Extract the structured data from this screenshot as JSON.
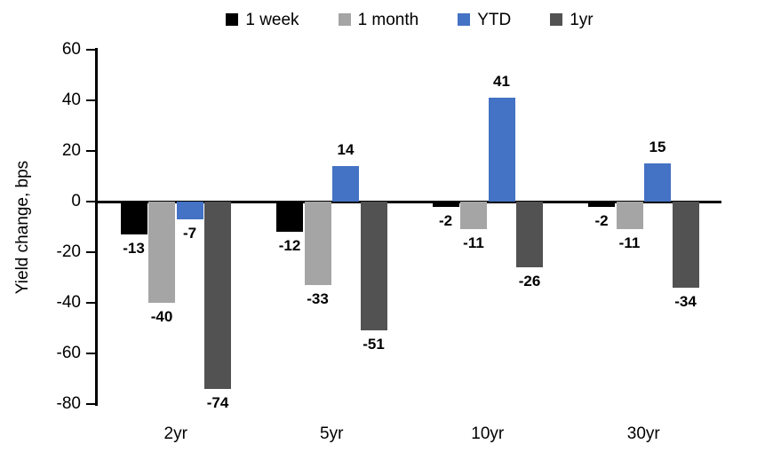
{
  "chart_data": {
    "type": "bar",
    "title": "",
    "xlabel": "",
    "ylabel": "Yield change, bps",
    "categories": [
      "2yr",
      "5yr",
      "10yr",
      "30yr"
    ],
    "series": [
      {
        "name": "1 week",
        "color": "#000000",
        "values": [
          -13,
          -12,
          -2,
          -2
        ]
      },
      {
        "name": "1 month",
        "color": "#A5A5A5",
        "values": [
          -40,
          -33,
          -11,
          -11
        ]
      },
      {
        "name": "YTD",
        "color": "#4472C4",
        "values": [
          -7,
          14,
          41,
          15
        ]
      },
      {
        "name": "1yr",
        "color": "#525252",
        "values": [
          -74,
          -51,
          -26,
          -34
        ]
      }
    ],
    "ylim": [
      -80,
      60
    ],
    "ytick_step": 20,
    "yticks": [
      60,
      40,
      20,
      0,
      -20,
      -40,
      -60,
      -80
    ],
    "legend_position": "top",
    "grid": false,
    "bar_labels_visible": true,
    "axis_color": "#000000"
  }
}
